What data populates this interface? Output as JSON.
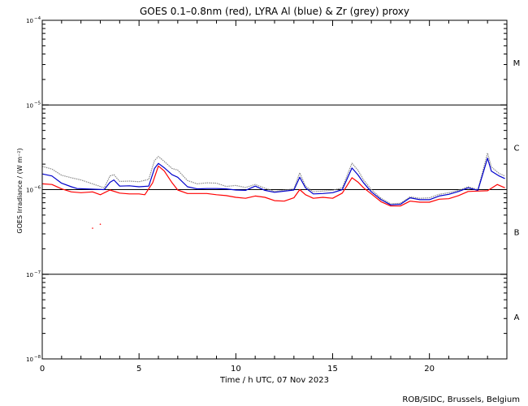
{
  "chart_data": {
    "type": "line",
    "title": "GOES 0.1–0.8nm (red), LYRA Al (blue) & Zr (grey) proxy",
    "xlabel": "Time / h UTC, 07 Nov 2023",
    "ylabel": "GOES Irradiance / (W m⁻²)",
    "xlim": [
      0,
      24
    ],
    "ylim": [
      1e-08,
      0.0001
    ],
    "yscale": "log",
    "x_ticks": [
      0,
      5,
      10,
      15,
      20
    ],
    "y_ticks": [
      {
        "value": 1e-08,
        "base": "10",
        "exp": "−8"
      },
      {
        "value": 1e-07,
        "base": "10",
        "exp": "−7"
      },
      {
        "value": 1e-06,
        "base": "10",
        "exp": "−6"
      },
      {
        "value": 1e-05,
        "base": "10",
        "exp": "−5"
      },
      {
        "value": 0.0001,
        "base": "10",
        "exp": "−4"
      }
    ],
    "flare_classes": [
      {
        "label": "A",
        "value": 3.16e-08
      },
      {
        "label": "B",
        "value": 3.16e-07
      },
      {
        "label": "C",
        "value": 3.16e-06
      },
      {
        "label": "M",
        "value": 3.16e-05
      }
    ],
    "threshold_lines": [
      1e-07,
      1e-06,
      1e-05
    ],
    "series": [
      {
        "name": "GOES 0.1–0.8nm",
        "color": "#ff0000",
        "points": [
          [
            0.0,
            1.17e-06
          ],
          [
            0.5,
            1.15e-06
          ],
          [
            1.0,
            1.02e-06
          ],
          [
            1.5,
            9.4e-07
          ],
          [
            2.0,
            9.2e-07
          ],
          [
            2.6,
            9.4e-07
          ],
          [
            3.0,
            8.7e-07
          ],
          [
            3.5,
            9.9e-07
          ],
          [
            4.0,
            9.1e-07
          ],
          [
            4.5,
            8.9e-07
          ],
          [
            5.0,
            8.9e-07
          ],
          [
            5.3,
            8.7e-07
          ],
          [
            5.7,
            1.2e-06
          ],
          [
            6.0,
            1.9e-06
          ],
          [
            6.3,
            1.66e-06
          ],
          [
            6.7,
            1.21e-06
          ],
          [
            7.0,
            9.9e-07
          ],
          [
            7.5,
            9e-07
          ],
          [
            8.0,
            9e-07
          ],
          [
            8.5,
            9e-07
          ],
          [
            9.0,
            8.7e-07
          ],
          [
            9.5,
            8.5e-07
          ],
          [
            10.0,
            8.1e-07
          ],
          [
            10.5,
            7.9e-07
          ],
          [
            11.0,
            8.4e-07
          ],
          [
            11.5,
            8.1e-07
          ],
          [
            12.0,
            7.4e-07
          ],
          [
            12.5,
            7.3e-07
          ],
          [
            13.0,
            8e-07
          ],
          [
            13.3,
            1e-06
          ],
          [
            13.6,
            8.7e-07
          ],
          [
            14.0,
            7.9e-07
          ],
          [
            14.5,
            8.1e-07
          ],
          [
            15.0,
            7.9e-07
          ],
          [
            15.5,
            9.1e-07
          ],
          [
            16.0,
            1.38e-06
          ],
          [
            16.3,
            1.23e-06
          ],
          [
            16.6,
            1.05e-06
          ],
          [
            17.0,
            8.9e-07
          ],
          [
            17.5,
            7.2e-07
          ],
          [
            18.0,
            6.4e-07
          ],
          [
            18.5,
            6.4e-07
          ],
          [
            19.0,
            7.3e-07
          ],
          [
            19.5,
            7.1e-07
          ],
          [
            20.0,
            7.1e-07
          ],
          [
            20.5,
            7.7e-07
          ],
          [
            21.0,
            7.8e-07
          ],
          [
            21.5,
            8.5e-07
          ],
          [
            22.0,
            9.5e-07
          ],
          [
            22.5,
            9.6e-07
          ],
          [
            23.0,
            9.7e-07
          ],
          [
            23.5,
            1.15e-06
          ],
          [
            23.9,
            1.05e-06
          ]
        ]
      },
      {
        "name": "LYRA Al",
        "color": "#0000cc",
        "points": [
          [
            0.0,
            1.53e-06
          ],
          [
            0.5,
            1.45e-06
          ],
          [
            1.0,
            1.19e-06
          ],
          [
            1.5,
            1.08e-06
          ],
          [
            1.8,
            1.03e-06
          ],
          [
            3.2,
            1e-06
          ],
          [
            3.5,
            1.22e-06
          ],
          [
            3.7,
            1.3e-06
          ],
          [
            4.0,
            1.1e-06
          ],
          [
            4.5,
            1.11e-06
          ],
          [
            5.0,
            1.08e-06
          ],
          [
            5.5,
            1.1e-06
          ],
          [
            5.8,
            1.78e-06
          ],
          [
            6.0,
            2.04e-06
          ],
          [
            6.3,
            1.81e-06
          ],
          [
            6.7,
            1.5e-06
          ],
          [
            7.0,
            1.4e-06
          ],
          [
            7.5,
            1.08e-06
          ],
          [
            8.0,
            1.02e-06
          ],
          [
            8.5,
            1.03e-06
          ],
          [
            9.0,
            1.03e-06
          ],
          [
            9.5,
            1.02e-06
          ],
          [
            10.0,
            9.9e-07
          ],
          [
            10.5,
            9.8e-07
          ],
          [
            11.0,
            1.1e-06
          ],
          [
            11.5,
            9.8e-07
          ],
          [
            12.0,
            9.3e-07
          ],
          [
            13.0,
            9.9e-07
          ],
          [
            13.3,
            1.4e-06
          ],
          [
            13.6,
            1.05e-06
          ],
          [
            14.0,
            8.9e-07
          ],
          [
            14.5,
            9e-07
          ],
          [
            15.0,
            9.2e-07
          ],
          [
            15.5,
            1e-06
          ],
          [
            16.0,
            1.8e-06
          ],
          [
            16.3,
            1.5e-06
          ],
          [
            16.6,
            1.2e-06
          ],
          [
            17.0,
            9.4e-07
          ],
          [
            17.5,
            7.6e-07
          ],
          [
            18.0,
            6.6e-07
          ],
          [
            18.5,
            6.7e-07
          ],
          [
            19.0,
            8e-07
          ],
          [
            19.5,
            7.6e-07
          ],
          [
            20.0,
            7.6e-07
          ],
          [
            20.5,
            8.4e-07
          ],
          [
            21.0,
            8.8e-07
          ],
          [
            21.5,
            9.5e-07
          ],
          [
            22.0,
            1.05e-06
          ],
          [
            22.5,
            9.8e-07
          ],
          [
            23.0,
            2.35e-06
          ],
          [
            23.2,
            1.65e-06
          ],
          [
            23.6,
            1.45e-06
          ],
          [
            23.9,
            1.35e-06
          ]
        ]
      },
      {
        "name": "Zr",
        "color": "#888888",
        "points": [
          [
            0.0,
            1.88e-06
          ],
          [
            0.5,
            1.75e-06
          ],
          [
            1.0,
            1.48e-06
          ],
          [
            1.5,
            1.38e-06
          ],
          [
            2.0,
            1.3e-06
          ],
          [
            3.2,
            1.05e-06
          ],
          [
            3.5,
            1.45e-06
          ],
          [
            3.7,
            1.5e-06
          ],
          [
            4.0,
            1.25e-06
          ],
          [
            4.5,
            1.26e-06
          ],
          [
            5.0,
            1.24e-06
          ],
          [
            5.5,
            1.32e-06
          ],
          [
            5.8,
            2.2e-06
          ],
          [
            6.0,
            2.46e-06
          ],
          [
            6.3,
            2.15e-06
          ],
          [
            6.7,
            1.78e-06
          ],
          [
            7.0,
            1.7e-06
          ],
          [
            7.5,
            1.28e-06
          ],
          [
            8.0,
            1.17e-06
          ],
          [
            8.5,
            1.2e-06
          ],
          [
            9.0,
            1.19e-06
          ],
          [
            9.5,
            1.09e-06
          ],
          [
            10.0,
            1.12e-06
          ],
          [
            10.5,
            1.06e-06
          ],
          [
            11.0,
            1.15e-06
          ],
          [
            11.5,
            1.04e-06
          ],
          [
            12.0,
            9.5e-07
          ],
          [
            13.0,
            1.02e-06
          ],
          [
            13.3,
            1.58e-06
          ],
          [
            13.6,
            1.1e-06
          ],
          [
            14.0,
            9.4e-07
          ],
          [
            14.5,
            9.6e-07
          ],
          [
            15.0,
            9.8e-07
          ],
          [
            15.5,
            1.05e-06
          ],
          [
            16.0,
            2.05e-06
          ],
          [
            16.3,
            1.7e-06
          ],
          [
            16.6,
            1.3e-06
          ],
          [
            17.0,
            1e-06
          ],
          [
            17.5,
            7.9e-07
          ],
          [
            18.0,
            6.8e-07
          ],
          [
            18.5,
            6.9e-07
          ],
          [
            19.0,
            8.2e-07
          ],
          [
            19.5,
            7.9e-07
          ],
          [
            20.0,
            8e-07
          ],
          [
            20.5,
            8.8e-07
          ],
          [
            21.0,
            9.2e-07
          ],
          [
            21.5,
            9.8e-07
          ],
          [
            22.0,
            1.08e-06
          ],
          [
            22.5,
            1e-06
          ],
          [
            23.0,
            2.7e-06
          ],
          [
            23.2,
            1.85e-06
          ],
          [
            23.6,
            1.55e-06
          ],
          [
            23.9,
            1.45e-06
          ]
        ]
      }
    ],
    "outliers": [
      [
        2.6,
        3.5e-07
      ],
      [
        3.0,
        3.9e-07
      ]
    ],
    "grid": false,
    "legend": "none"
  },
  "footer": {
    "credit": "ROB/SIDC, Brussels, Belgium"
  }
}
